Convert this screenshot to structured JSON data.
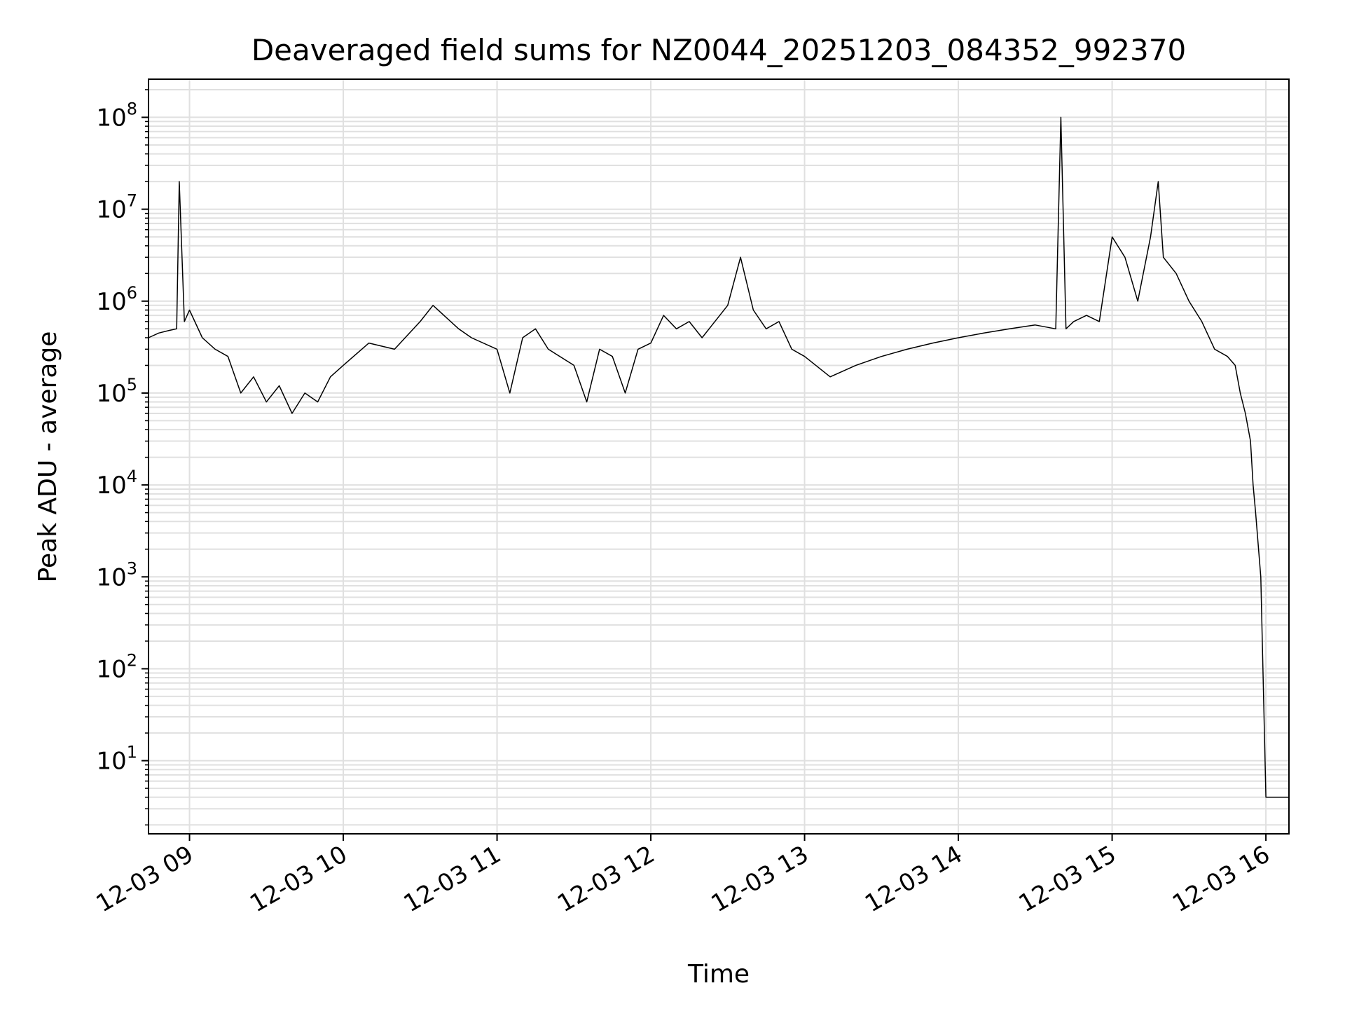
{
  "chart_data": {
    "type": "line",
    "title": "Deaveraged field sums for NZ0044_20251203_084352_992370",
    "xlabel": "Time",
    "ylabel": "Peak ADU - average",
    "y_scale": "log",
    "ylim": [
      1.6,
      260000000.0
    ],
    "xlim": [
      "2025-12-03 08:44",
      "2025-12-03 16:09"
    ],
    "grid": true,
    "line_color": "#000000",
    "grid_color": "#e0e0e0",
    "x_ticks": [
      {
        "value": "2025-12-03 09:00",
        "label": "12-03 09"
      },
      {
        "value": "2025-12-03 10:00",
        "label": "12-03 10"
      },
      {
        "value": "2025-12-03 11:00",
        "label": "12-03 11"
      },
      {
        "value": "2025-12-03 12:00",
        "label": "12-03 12"
      },
      {
        "value": "2025-12-03 13:00",
        "label": "12-03 13"
      },
      {
        "value": "2025-12-03 14:00",
        "label": "12-03 14"
      },
      {
        "value": "2025-12-03 15:00",
        "label": "12-03 15"
      },
      {
        "value": "2025-12-03 16:00",
        "label": "12-03 16"
      }
    ],
    "y_ticks": [
      {
        "value": 10,
        "base": "10",
        "exp": "1"
      },
      {
        "value": 100,
        "base": "10",
        "exp": "2"
      },
      {
        "value": 1000,
        "base": "10",
        "exp": "3"
      },
      {
        "value": 10000,
        "base": "10",
        "exp": "4"
      },
      {
        "value": 100000,
        "base": "10",
        "exp": "5"
      },
      {
        "value": 1000000,
        "base": "10",
        "exp": "6"
      },
      {
        "value": 10000000,
        "base": "10",
        "exp": "7"
      },
      {
        "value": 100000000,
        "base": "10",
        "exp": "8"
      }
    ],
    "series": [
      {
        "x": [
          "2025-12-03 08:44",
          "2025-12-03 08:48",
          "2025-12-03 08:52",
          "2025-12-03 08:55",
          "2025-12-03 08:56",
          "2025-12-03 08:58",
          "2025-12-03 09:00",
          "2025-12-03 09:05",
          "2025-12-03 09:10",
          "2025-12-03 09:15",
          "2025-12-03 09:20",
          "2025-12-03 09:25",
          "2025-12-03 09:30",
          "2025-12-03 09:35",
          "2025-12-03 09:40",
          "2025-12-03 09:45",
          "2025-12-03 09:50",
          "2025-12-03 09:55",
          "2025-12-03 10:00",
          "2025-12-03 10:10",
          "2025-12-03 10:20",
          "2025-12-03 10:30",
          "2025-12-03 10:35",
          "2025-12-03 10:45",
          "2025-12-03 10:50",
          "2025-12-03 11:00",
          "2025-12-03 11:05",
          "2025-12-03 11:10",
          "2025-12-03 11:15",
          "2025-12-03 11:20",
          "2025-12-03 11:30",
          "2025-12-03 11:35",
          "2025-12-03 11:40",
          "2025-12-03 11:45",
          "2025-12-03 11:50",
          "2025-12-03 11:55",
          "2025-12-03 12:00",
          "2025-12-03 12:05",
          "2025-12-03 12:10",
          "2025-12-03 12:15",
          "2025-12-03 12:20",
          "2025-12-03 12:30",
          "2025-12-03 12:35",
          "2025-12-03 12:40",
          "2025-12-03 12:45",
          "2025-12-03 12:50",
          "2025-12-03 12:55",
          "2025-12-03 13:00",
          "2025-12-03 13:10",
          "2025-12-03 13:20",
          "2025-12-03 13:30",
          "2025-12-03 13:40",
          "2025-12-03 13:50",
          "2025-12-03 14:00",
          "2025-12-03 14:10",
          "2025-12-03 14:20",
          "2025-12-03 14:30",
          "2025-12-03 14:38",
          "2025-12-03 14:40",
          "2025-12-03 14:42",
          "2025-12-03 14:45",
          "2025-12-03 14:50",
          "2025-12-03 14:55",
          "2025-12-03 15:00",
          "2025-12-03 15:05",
          "2025-12-03 15:10",
          "2025-12-03 15:15",
          "2025-12-03 15:18",
          "2025-12-03 15:20",
          "2025-12-03 15:25",
          "2025-12-03 15:30",
          "2025-12-03 15:35",
          "2025-12-03 15:40",
          "2025-12-03 15:45",
          "2025-12-03 15:48",
          "2025-12-03 15:50",
          "2025-12-03 15:52",
          "2025-12-03 15:54",
          "2025-12-03 15:55",
          "2025-12-03 15:56",
          "2025-12-03 15:58",
          "2025-12-03 16:00",
          "2025-12-03 16:05",
          "2025-12-03 16:09"
        ],
        "y": [
          400000,
          450000,
          480000,
          500000,
          20000000,
          600000,
          800000,
          400000,
          300000,
          250000,
          100000,
          150000,
          80000,
          120000,
          60000,
          100000,
          80000,
          150000,
          200000,
          350000,
          300000,
          600000,
          900000,
          500000,
          400000,
          300000,
          100000,
          400000,
          500000,
          300000,
          200000,
          80000,
          300000,
          250000,
          100000,
          300000,
          350000,
          700000,
          500000,
          600000,
          400000,
          900000,
          3000000,
          800000,
          500000,
          600000,
          300000,
          250000,
          150000,
          200000,
          250000,
          300000,
          350000,
          400000,
          450000,
          500000,
          550000,
          500000,
          100000000,
          500000,
          600000,
          700000,
          600000,
          5000000,
          3000000,
          1000000,
          5000000,
          20000000,
          3000000,
          2000000,
          1000000,
          600000,
          300000,
          250000,
          200000,
          100000,
          60000,
          30000,
          10000,
          5000,
          1000,
          4,
          4,
          4
        ]
      }
    ]
  }
}
